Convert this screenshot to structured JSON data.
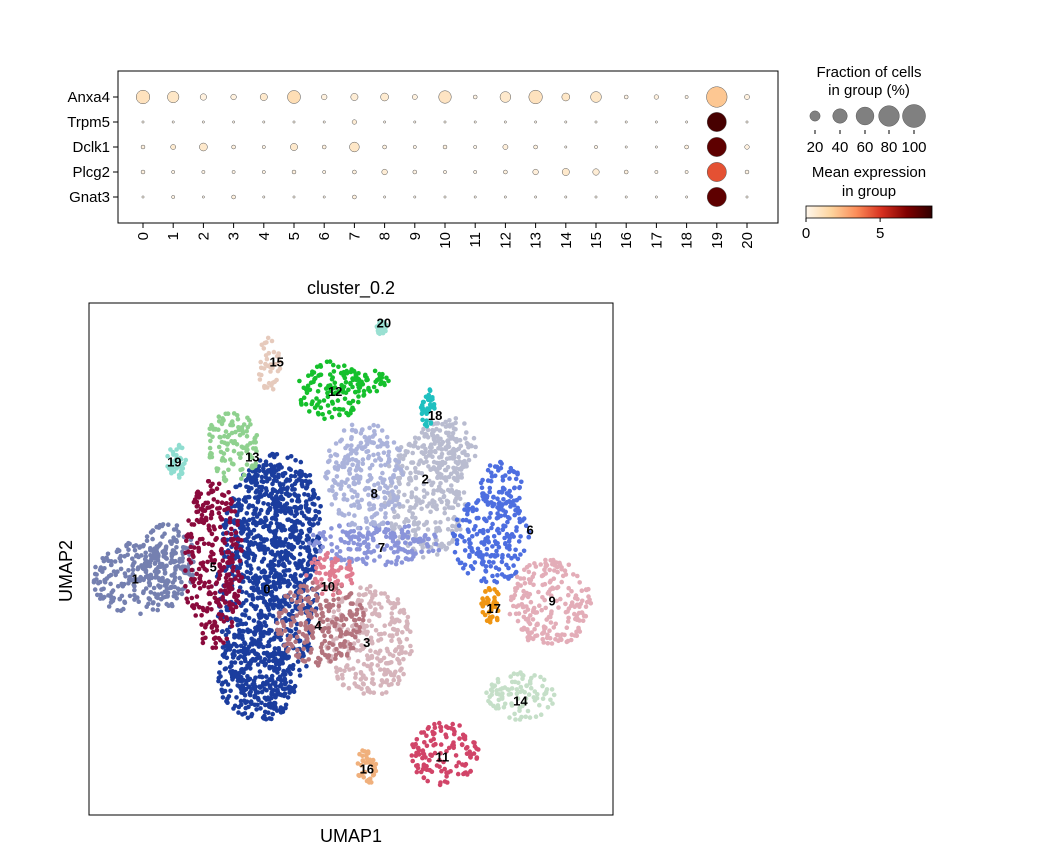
{
  "chart_data": [
    {
      "type": "dotplot",
      "genes": [
        "Anxa4",
        "Trpm5",
        "Dclk1",
        "Plcg2",
        "Gnat3"
      ],
      "clusters": [
        "0",
        "1",
        "2",
        "3",
        "4",
        "5",
        "6",
        "7",
        "8",
        "9",
        "10",
        "11",
        "12",
        "13",
        "14",
        "15",
        "16",
        "17",
        "18",
        "19",
        "20"
      ],
      "mean_expression": [
        [
          1.0,
          0.8,
          0.3,
          0.3,
          0.7,
          1.2,
          0.3,
          0.5,
          0.6,
          0.3,
          0.9,
          0.2,
          0.7,
          1.0,
          0.8,
          0.8,
          0.2,
          0.3,
          0.2,
          2.0,
          0.3
        ],
        [
          0.1,
          0.1,
          0.1,
          0.1,
          0.1,
          0.1,
          0.1,
          0.5,
          0.1,
          0.1,
          0.1,
          0.1,
          0.1,
          0.1,
          0.1,
          0.1,
          0.1,
          0.1,
          0.1,
          8.0,
          0.1
        ],
        [
          0.3,
          0.6,
          0.7,
          0.3,
          0.2,
          0.7,
          0.3,
          0.8,
          0.3,
          0.2,
          0.3,
          0.1,
          0.4,
          0.3,
          0.1,
          0.2,
          0.1,
          0.1,
          0.3,
          7.5,
          0.3
        ],
        [
          0.3,
          0.2,
          0.2,
          0.2,
          0.2,
          0.3,
          0.2,
          0.3,
          0.5,
          0.2,
          0.2,
          0.2,
          0.3,
          0.4,
          0.7,
          0.5,
          0.3,
          0.2,
          0.2,
          4.5,
          0.2
        ],
        [
          0.1,
          0.2,
          0.1,
          0.3,
          0.1,
          0.1,
          0.1,
          0.3,
          0.1,
          0.1,
          0.1,
          0.1,
          0.1,
          0.1,
          0.1,
          0.1,
          0.1,
          0.1,
          0.1,
          7.5,
          0.1
        ]
      ],
      "fraction_pct": [
        [
          35,
          25,
          8,
          6,
          10,
          32,
          6,
          10,
          12,
          5,
          30,
          3,
          22,
          35,
          12,
          22,
          3,
          4,
          2,
          80,
          5
        ],
        [
          1,
          1,
          1,
          1,
          1,
          1,
          1,
          4,
          1,
          1,
          1,
          1,
          1,
          1,
          1,
          1,
          1,
          1,
          1,
          70,
          1
        ],
        [
          3,
          5,
          12,
          3,
          2,
          10,
          3,
          18,
          3,
          2,
          3,
          2,
          5,
          3,
          1,
          2,
          1,
          1,
          3,
          70,
          4
        ],
        [
          3,
          2,
          2,
          2,
          2,
          3,
          2,
          3,
          6,
          3,
          2,
          2,
          3,
          6,
          10,
          8,
          3,
          2,
          2,
          70,
          3
        ],
        [
          1,
          2,
          1,
          3,
          1,
          1,
          1,
          3,
          1,
          1,
          1,
          1,
          1,
          1,
          1,
          1,
          1,
          1,
          1,
          70,
          1
        ]
      ],
      "size_legend": {
        "title": [
          "Fraction of cells",
          "in group (%)"
        ],
        "values": [
          20,
          40,
          60,
          80,
          100
        ],
        "labels": [
          "20",
          "40",
          "60",
          "80",
          "100"
        ]
      },
      "color_legend": {
        "title": [
          "Mean expression",
          "in group"
        ],
        "range": [
          0,
          8.5
        ],
        "ticks": [
          0,
          5
        ],
        "tick_labels": [
          "0",
          "5"
        ],
        "colormap": [
          "#fff7ec",
          "#fdd49e",
          "#fc8d59",
          "#d7301f",
          "#7f0000",
          "#300000"
        ]
      }
    },
    {
      "type": "scatter",
      "title": "cluster_0.2",
      "xlabel": "UMAP1",
      "ylabel": "UMAP2",
      "grid": false,
      "clusters": [
        {
          "label": "0",
          "color": "#1b3d9e",
          "ellipses": [
            [
              -0.2,
              -0.1,
              2.1,
              5.2
            ],
            [
              0.3,
              2.2,
              1.8,
              3.2
            ],
            [
              -0.6,
              -3.8,
              1.6,
              2.0
            ]
          ]
        },
        {
          "label": "1",
          "color": "#7580b0",
          "ellipses": [
            [
              -5.4,
              0.2,
              2.0,
              1.5
            ],
            [
              -4.3,
              0.9,
              1.2,
              1.6
            ]
          ]
        },
        {
          "label": "2",
          "color": "#b9bcd0",
          "ellipses": [
            [
              6.3,
              3.6,
              1.7,
              2.6
            ],
            [
              7.2,
              5.6,
              1.2,
              1.3
            ]
          ]
        },
        {
          "label": "3",
          "color": "#d6b4bb",
          "ellipses": [
            [
              4.0,
              -2.4,
              1.8,
              2.3
            ]
          ]
        },
        {
          "label": "4",
          "color": "#b4747e",
          "ellipses": [
            [
              2.0,
              -1.6,
              1.8,
              1.8
            ]
          ]
        },
        {
          "label": "5",
          "color": "#8a0a3c",
          "ellipses": [
            [
              -2.4,
              0.8,
              1.2,
              3.5
            ]
          ]
        },
        {
          "label": "6",
          "color": "#4d6ee0",
          "ellipses": [
            [
              9.0,
              1.8,
              1.6,
              1.8
            ],
            [
              9.4,
              4.0,
              0.9,
              1.0
            ]
          ]
        },
        {
          "label": "7",
          "color": "#8a94da",
          "ellipses": [
            [
              4.2,
              1.6,
              2.8,
              0.9
            ]
          ]
        },
        {
          "label": "8",
          "color": "#abb3db",
          "ellipses": [
            [
              3.8,
              4.4,
              1.7,
              2.2
            ]
          ]
        },
        {
          "label": "9",
          "color": "#e3adb8",
          "ellipses": [
            [
              11.4,
              -0.8,
              1.7,
              1.8
            ]
          ]
        },
        {
          "label": "10",
          "color": "#e07c90",
          "ellipses": [
            [
              2.4,
              0.4,
              1.0,
              0.9
            ]
          ]
        },
        {
          "label": "11",
          "color": "#d14468",
          "ellipses": [
            [
              7.1,
              -7.0,
              1.4,
              1.3
            ]
          ]
        },
        {
          "label": "12",
          "color": "#15c02c",
          "ellipses": [
            [
              2.4,
              7.9,
              1.4,
              1.2
            ],
            [
              3.8,
              8.3,
              1.0,
              0.5
            ]
          ]
        },
        {
          "label": "13",
          "color": "#8fd18f",
          "ellipses": [
            [
              -1.6,
              5.6,
              1.1,
              1.5
            ]
          ]
        },
        {
          "label": "14",
          "color": "#c5dfc8",
          "ellipses": [
            [
              10.2,
              -4.6,
              1.4,
              1.0
            ]
          ]
        },
        {
          "label": "15",
          "color": "#e6cabc",
          "ellipses": [
            [
              -0.1,
              9.0,
              0.5,
              1.1
            ]
          ]
        },
        {
          "label": "16",
          "color": "#f0b07c",
          "ellipses": [
            [
              3.9,
              -7.5,
              0.4,
              0.8
            ]
          ]
        },
        {
          "label": "17",
          "color": "#ef9512",
          "ellipses": [
            [
              9.0,
              -0.9,
              0.4,
              0.8
            ]
          ]
        },
        {
          "label": "18",
          "color": "#1fc0c0",
          "ellipses": [
            [
              6.4,
              7.2,
              0.3,
              0.8
            ]
          ]
        },
        {
          "label": "19",
          "color": "#8fddd0",
          "ellipses": [
            [
              -3.9,
              5.0,
              0.4,
              0.7
            ]
          ]
        },
        {
          "label": "20",
          "color": "#9ae0d2",
          "ellipses": [
            [
              4.5,
              10.5,
              0.2,
              0.3
            ]
          ]
        }
      ],
      "annotations": [
        {
          "text": "0",
          "x": -0.2,
          "y": -0.2
        },
        {
          "text": "1",
          "x": -5.6,
          "y": 0.2
        },
        {
          "text": "2",
          "x": 6.3,
          "y": 4.3
        },
        {
          "text": "3",
          "x": 3.9,
          "y": -2.4
        },
        {
          "text": "4",
          "x": 1.9,
          "y": -1.7
        },
        {
          "text": "5",
          "x": -2.4,
          "y": 0.7
        },
        {
          "text": "6",
          "x": 10.6,
          "y": 2.2
        },
        {
          "text": "7",
          "x": 4.5,
          "y": 1.5
        },
        {
          "text": "8",
          "x": 4.2,
          "y": 3.7
        },
        {
          "text": "9",
          "x": 11.5,
          "y": -0.7
        },
        {
          "text": "10",
          "x": 2.3,
          "y": -0.1
        },
        {
          "text": "11",
          "x": 7.0,
          "y": -7.1
        },
        {
          "text": "12",
          "x": 2.6,
          "y": 7.9
        },
        {
          "text": "13",
          "x": -0.8,
          "y": 5.2
        },
        {
          "text": "14",
          "x": 10.2,
          "y": -4.8
        },
        {
          "text": "15",
          "x": 0.2,
          "y": 9.1
        },
        {
          "text": "16",
          "x": 3.9,
          "y": -7.6
        },
        {
          "text": "17",
          "x": 9.1,
          "y": -1.0
        },
        {
          "text": "18",
          "x": 6.7,
          "y": 6.9
        },
        {
          "text": "19",
          "x": -4.0,
          "y": 5.0
        },
        {
          "text": "20",
          "x": 4.6,
          "y": 10.7
        }
      ],
      "xlim": [
        -7.5,
        14
      ],
      "ylim": [
        -9.5,
        11.5
      ]
    }
  ]
}
